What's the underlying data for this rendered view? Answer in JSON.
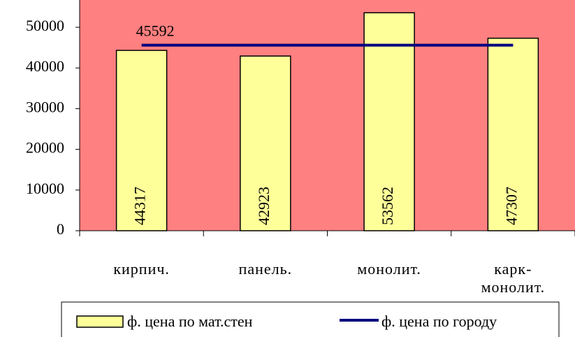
{
  "chart_data": {
    "type": "bar-line",
    "categories": [
      "кирпич.",
      "панель.",
      "монолит.",
      "карк-монолит."
    ],
    "series": [
      {
        "name": "ф. цена по мат.стен",
        "type": "bar",
        "color": "#ffff99",
        "values": [
          44317,
          42923,
          53562,
          47307
        ]
      },
      {
        "name": "ф. цена по городу",
        "type": "line",
        "color": "#000080",
        "values": [
          45592,
          45592,
          45592,
          45592
        ]
      }
    ],
    "ylim": [
      0,
      56700
    ],
    "yticks": [
      0,
      10000,
      20000,
      30000,
      40000,
      50000
    ],
    "plot_color": "#ff8080",
    "legend": "bottom"
  }
}
